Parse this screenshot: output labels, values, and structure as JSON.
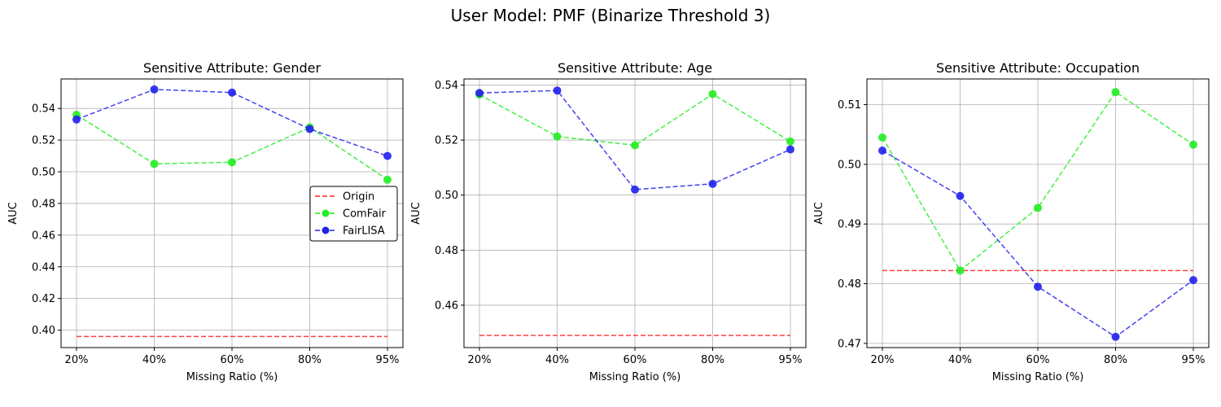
{
  "suptitle": "User Model: PMF (Binarize Threshold 3)",
  "chart_data": [
    {
      "type": "line",
      "title": "Sensitive Attribute: Gender",
      "xlabel": "Missing Ratio (%)",
      "ylabel": "AUC",
      "categories": [
        "20%",
        "40%",
        "60%",
        "80%",
        "95%"
      ],
      "ylim": [
        0.389,
        0.5586
      ],
      "yticks": [
        0.4,
        0.42,
        0.44,
        0.46,
        0.48,
        0.5,
        0.52,
        0.54
      ],
      "ytick_labels": [
        "0.40",
        "0.42",
        "0.44",
        "0.46",
        "0.48",
        "0.50",
        "0.52",
        "0.54"
      ],
      "grid": true,
      "legend": {
        "show": true,
        "placement": "center-right"
      },
      "series": [
        {
          "name": "Origin",
          "style": "dashed",
          "markers": false,
          "color": "#ff2020",
          "values": [
            0.396,
            0.396,
            0.396,
            0.396,
            0.396
          ]
        },
        {
          "name": "ComFair",
          "style": "dashed",
          "markers": true,
          "color": "#22ee22",
          "values": [
            0.536,
            0.505,
            0.506,
            0.528,
            0.495
          ]
        },
        {
          "name": "FairLISA",
          "style": "dashed",
          "markers": true,
          "color": "#2222ee",
          "values": [
            0.533,
            0.552,
            0.55,
            0.527,
            0.51
          ]
        }
      ]
    },
    {
      "type": "line",
      "title": "Sensitive Attribute: Age",
      "xlabel": "Missing Ratio (%)",
      "ylabel": "AUC",
      "categories": [
        "20%",
        "40%",
        "60%",
        "80%",
        "95%"
      ],
      "ylim": [
        0.4446,
        0.5422
      ],
      "yticks": [
        0.46,
        0.48,
        0.5,
        0.52,
        0.54
      ],
      "ytick_labels": [
        "0.46",
        "0.48",
        "0.50",
        "0.52",
        "0.54"
      ],
      "grid": true,
      "legend": {
        "show": false
      },
      "series": [
        {
          "name": "Origin",
          "style": "dashed",
          "markers": false,
          "color": "#ff2020",
          "values": [
            0.449,
            0.449,
            0.449,
            0.449,
            0.449
          ]
        },
        {
          "name": "ComFair",
          "style": "dashed",
          "markers": true,
          "color": "#22ee22",
          "values": [
            0.5365,
            0.5213,
            0.5181,
            0.5367,
            0.5195
          ]
        },
        {
          "name": "FairLISA",
          "style": "dashed",
          "markers": true,
          "color": "#2222ee",
          "values": [
            0.5371,
            0.538,
            0.502,
            0.5041,
            0.5166
          ]
        }
      ]
    },
    {
      "type": "line",
      "title": "Sensitive Attribute: Occupation",
      "xlabel": "Missing Ratio (%)",
      "ylabel": "AUC",
      "categories": [
        "20%",
        "40%",
        "60%",
        "80%",
        "95%"
      ],
      "ylim": [
        0.4693,
        0.5143
      ],
      "yticks": [
        0.47,
        0.48,
        0.49,
        0.5,
        0.51
      ],
      "ytick_labels": [
        "0.47",
        "0.48",
        "0.49",
        "0.50",
        "0.51"
      ],
      "grid": true,
      "legend": {
        "show": false
      },
      "series": [
        {
          "name": "Origin",
          "style": "dashed",
          "markers": false,
          "color": "#ff2020",
          "values": [
            0.4822,
            0.4822,
            0.4822,
            0.4822,
            0.4822
          ]
        },
        {
          "name": "ComFair",
          "style": "dashed",
          "markers": true,
          "color": "#22ee22",
          "values": [
            0.5045,
            0.4822,
            0.4927,
            0.5121,
            0.5033
          ]
        },
        {
          "name": "FairLISA",
          "style": "dashed",
          "markers": true,
          "color": "#2222ee",
          "values": [
            0.5023,
            0.4947,
            0.4795,
            0.4711,
            0.4806
          ]
        }
      ]
    }
  ]
}
